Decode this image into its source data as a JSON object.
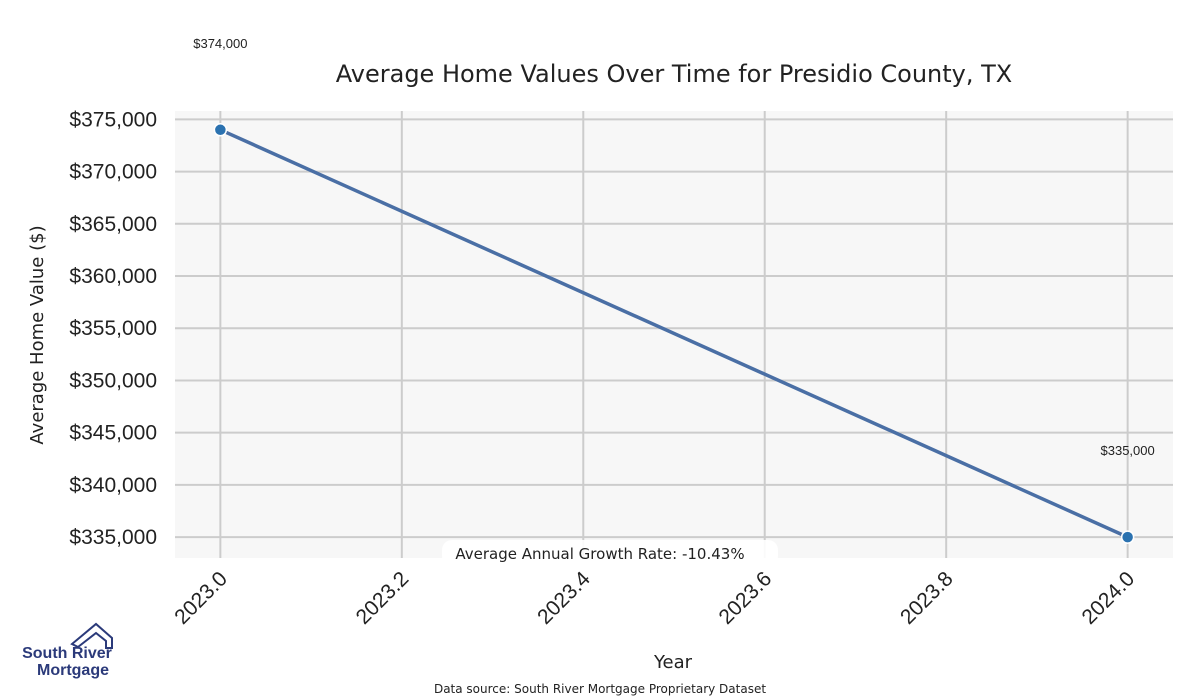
{
  "chart_data": {
    "type": "line",
    "title": "Average Home Values Over Time for Presidio County, TX",
    "xlabel": "Year",
    "ylabel": "Average Home Value ($)",
    "x": [
      2023.0,
      2024.0
    ],
    "series": [
      {
        "values": [
          374000,
          335000
        ],
        "color": "#4a6fa5",
        "marker_color": "#2b72b0"
      }
    ],
    "point_labels": [
      "$374,000",
      "$335,000"
    ],
    "xlim": [
      2022.95,
      2024.05
    ],
    "ylim": [
      333000,
      375800
    ],
    "xticks": [
      2023.0,
      2023.2,
      2023.4,
      2023.6,
      2023.8,
      2024.0
    ],
    "xtick_labels": [
      "2023.0",
      "2023.2",
      "2023.4",
      "2023.6",
      "2023.8",
      "2024.0"
    ],
    "yticks": [
      335000,
      340000,
      345000,
      350000,
      355000,
      360000,
      365000,
      370000,
      375000
    ],
    "ytick_labels": [
      "$335,000",
      "$340,000",
      "$345,000",
      "$350,000",
      "$355,000",
      "$360,000",
      "$365,000",
      "$370,000",
      "$375,000"
    ],
    "grid": true,
    "annotation": "Average Annual Growth Rate: -10.43%"
  },
  "footer": {
    "source": "Data source: South River Mortgage Proprietary Dataset",
    "logo_line1": "South River",
    "logo_line2": "Mortgage"
  },
  "colors": {
    "plot_bg": "#f7f7f7",
    "grid": "#cccccc",
    "logo": "#2b3a7a"
  }
}
